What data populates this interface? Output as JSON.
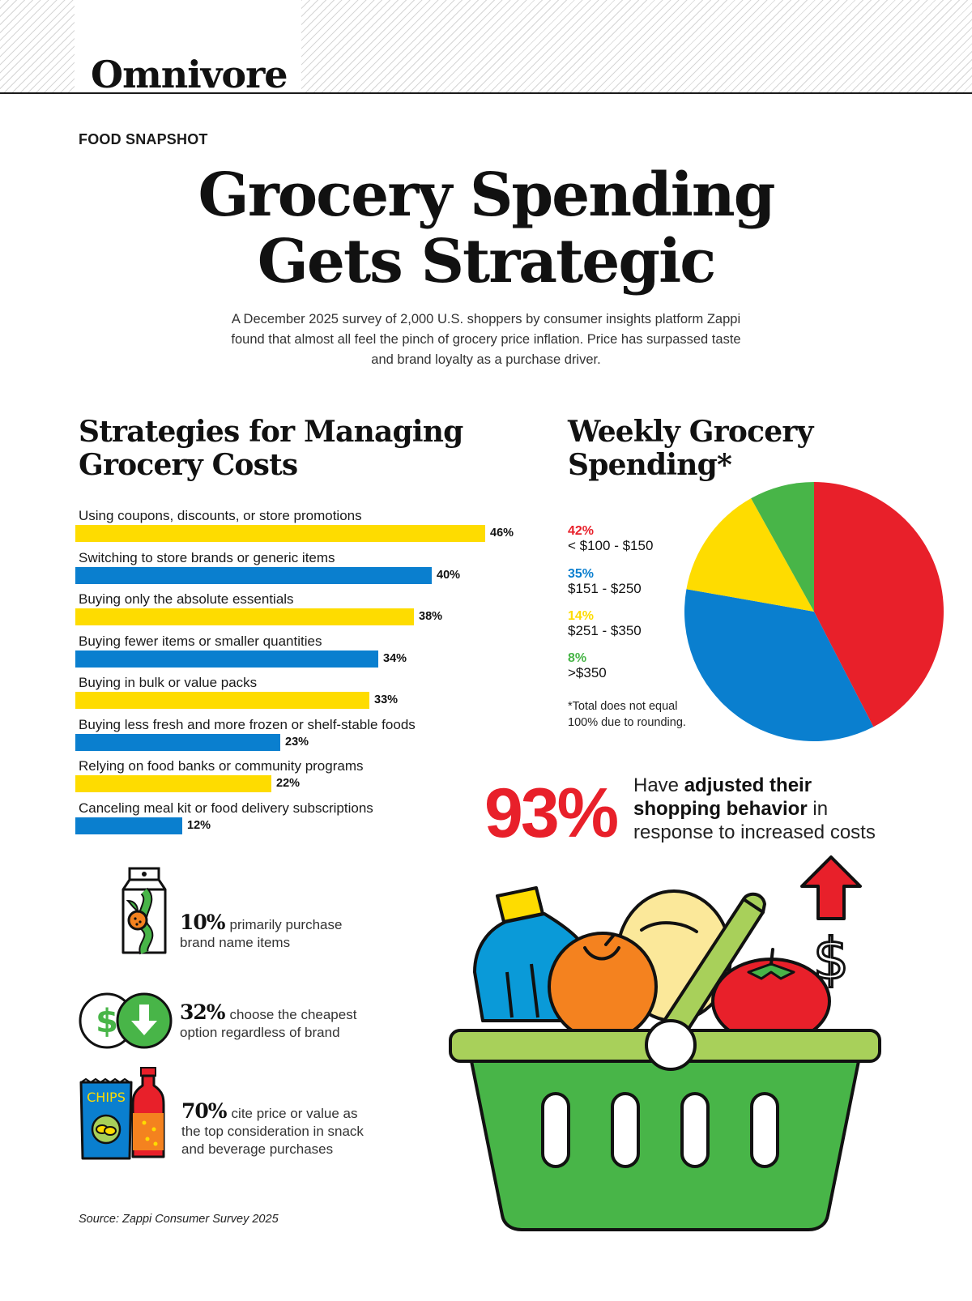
{
  "brand": "Omnivore",
  "kicker": "FOOD SNAPSHOT",
  "headline": [
    "Grocery Spending",
    "Gets Strategic"
  ],
  "intro": "A December 2025 survey of 2,000 U.S. shoppers by consumer insights platform Zappi found that almost all feel the pinch of grocery price inflation. Price has surpassed taste and brand loyalty as a purchase driver.",
  "colors": {
    "yellow": "#fedc00",
    "blue": "#0a7fcf",
    "red": "#e8202a",
    "green": "#48b548"
  },
  "chart_data": [
    {
      "type": "bar",
      "orientation": "horizontal",
      "title": [
        "Strategies for Managing",
        "Grocery Costs"
      ],
      "categories": [
        "Using coupons, discounts, or store promotions",
        "Switching to store brands or generic items",
        "Buying only the absolute essentials",
        "Buying fewer items or smaller quantities",
        "Buying in bulk or value packs",
        "Buying less fresh and more frozen or shelf-stable foods",
        "Relying on food banks or community programs",
        "Canceling meal kit or food delivery subscriptions"
      ],
      "values": [
        46,
        40,
        38,
        34,
        33,
        23,
        22,
        12
      ],
      "value_labels": [
        "46%",
        "40%",
        "38%",
        "34%",
        "33%",
        "23%",
        "22%",
        "12%"
      ],
      "bar_colors": [
        "#fedc00",
        "#0a7fcf",
        "#fedc00",
        "#0a7fcf",
        "#fedc00",
        "#0a7fcf",
        "#fedc00",
        "#0a7fcf"
      ]
    },
    {
      "type": "pie",
      "title": [
        "Weekly Grocery",
        "Spending*"
      ],
      "slices": [
        {
          "label": "< $100 - $150",
          "value": 42,
          "value_label": "42%",
          "color": "#e8202a"
        },
        {
          "label": "$151 - $250",
          "value": 35,
          "value_label": "35%",
          "color": "#0a7fcf"
        },
        {
          "label": "$251 - $350",
          "value": 14,
          "value_label": "14%",
          "color": "#fedc00"
        },
        {
          "label": ">$350",
          "value": 8,
          "value_label": "8%",
          "color": "#48b548"
        }
      ],
      "legend_position": "left",
      "footnote": [
        "*Total does not equal",
        "100% due to rounding."
      ]
    }
  ],
  "callout": {
    "value": "93%",
    "text_1": "Have ",
    "bold_1": "adjusted their",
    "bold_2": "shopping behavior",
    "text_2": " in",
    "text_3": "response to increased costs"
  },
  "stats": [
    {
      "value": "10%",
      "line1": "primarily purchase",
      "line2": "brand name items",
      "icon": "juice-carton-icon"
    },
    {
      "value": "32%",
      "line1": "choose the cheapest",
      "line2": "option regardless of brand",
      "icon": "price-down-icon"
    },
    {
      "value": "70%",
      "line1": "cite price or value as",
      "line2": "the top consideration in snack",
      "line3": "and beverage purchases",
      "icon": "chips-soda-icon"
    }
  ],
  "icons": {
    "chips_text": "CHIPS",
    "dollar": "$",
    "basket": "grocery-basket-icon",
    "arrow": "up-arrow-icon"
  },
  "source": "Source: Zappi Consumer Survey 2025"
}
